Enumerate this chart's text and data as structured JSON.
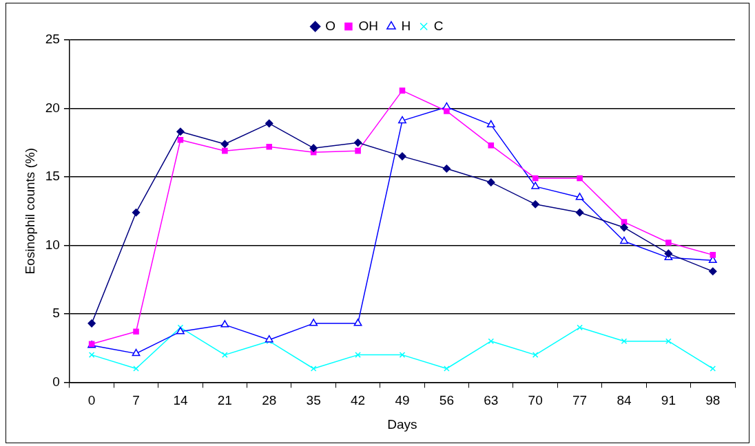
{
  "chart_data": {
    "type": "line",
    "xlabel": "Days",
    "ylabel": "Eosinophil counts (%)",
    "categories": [
      "0",
      "7",
      "14",
      "21",
      "28",
      "35",
      "42",
      "49",
      "56",
      "63",
      "70",
      "77",
      "84",
      "91",
      "98"
    ],
    "ylim": [
      0,
      25
    ],
    "yticks": [
      0,
      5,
      10,
      15,
      20,
      25
    ],
    "grid": "y",
    "legend": "top",
    "series": [
      {
        "name": "O",
        "color": "#000080",
        "marker": "diamond",
        "values": [
          4.3,
          12.4,
          18.3,
          17.4,
          18.9,
          17.1,
          17.5,
          16.5,
          15.6,
          14.6,
          13.0,
          12.4,
          11.3,
          9.4,
          8.1
        ]
      },
      {
        "name": "OH",
        "color": "#ff00ff",
        "marker": "square",
        "values": [
          2.8,
          3.7,
          17.7,
          16.9,
          17.2,
          16.8,
          16.9,
          21.3,
          19.8,
          17.3,
          14.9,
          14.9,
          11.7,
          10.2,
          9.3
        ]
      },
      {
        "name": "H",
        "color": "#0000ff",
        "marker": "triangle",
        "values": [
          2.7,
          2.1,
          3.7,
          4.2,
          3.1,
          4.3,
          4.3,
          19.1,
          20.1,
          18.8,
          14.3,
          13.5,
          10.3,
          9.1,
          8.9
        ]
      },
      {
        "name": "C",
        "color": "#00ffff",
        "marker": "cross",
        "values": [
          2,
          1,
          4,
          2,
          3,
          1,
          2,
          2,
          1,
          3,
          2,
          4,
          3,
          3,
          1
        ]
      }
    ]
  }
}
